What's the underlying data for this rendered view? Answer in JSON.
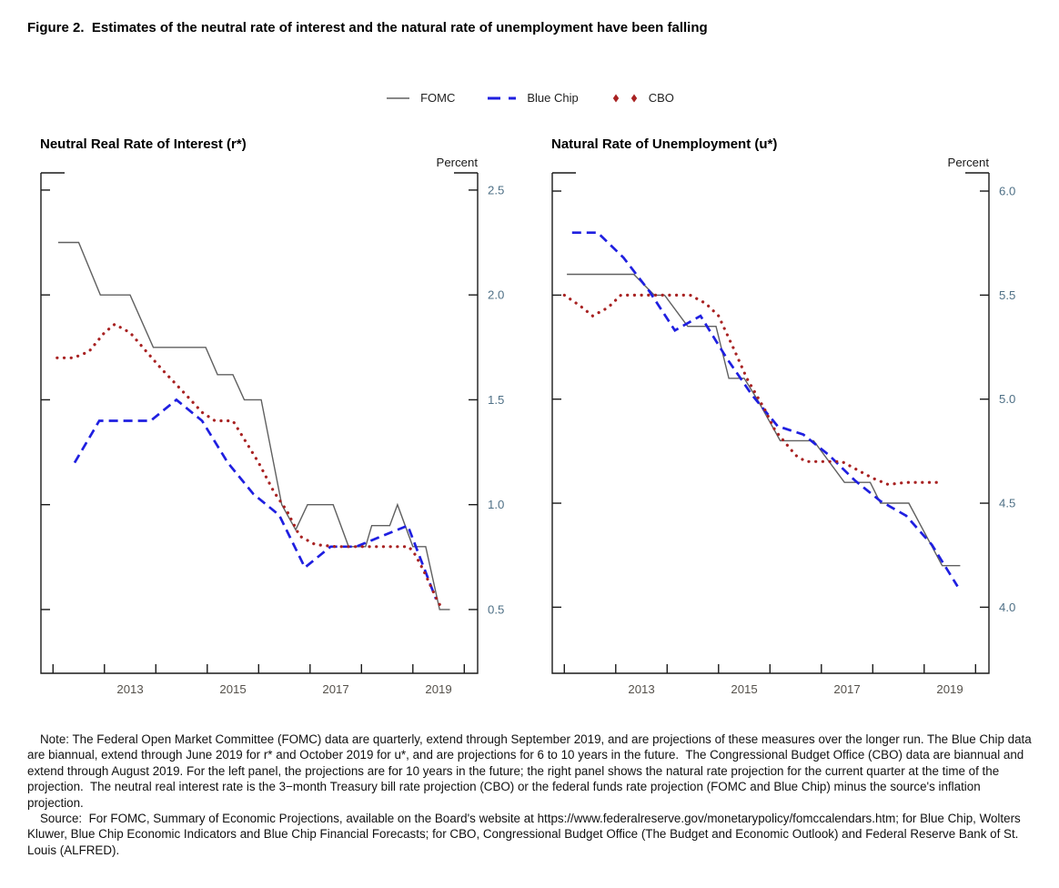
{
  "figure": {
    "title": "Figure 2.  Estimates of the neutral rate of interest and the natural rate of unemployment have been falling"
  },
  "legend": [
    {
      "label": "FOMC",
      "style": "solid",
      "color": "#606060"
    },
    {
      "label": "Blue Chip",
      "style": "dashed",
      "color": "#1f1fe0"
    },
    {
      "label": "CBO",
      "style": "dotted",
      "color": "#a82222"
    }
  ],
  "chart_data": [
    {
      "type": "line",
      "title": "Neutral Real Rate of Interest (r*)",
      "y_axis_label": "Percent",
      "y_tick_labels": [
        "2.5",
        "2.0",
        "1.5",
        "1.0",
        "0.5"
      ],
      "y_ticks": [
        2.5,
        2.0,
        1.5,
        1.0,
        0.5
      ],
      "x_labels": [
        "2013",
        "2015",
        "2017",
        "2019"
      ],
      "x_ticks": [
        2012,
        2013,
        2014,
        2015,
        2016,
        2017,
        2018,
        2019,
        2020
      ],
      "x_range_drawn": [
        2011.765,
        2020.26
      ],
      "y_range_drawn": [
        0.196,
        2.582
      ],
      "grid": false,
      "legend_position": "top-center-shared",
      "series": [
        {
          "name": "FOMC",
          "style": "solid",
          "color": "#606060",
          "points": [
            [
              2012.1,
              2.25
            ],
            [
              2012.5,
              2.25
            ],
            [
              2012.92,
              2.0
            ],
            [
              2013.5,
              2.0
            ],
            [
              2013.95,
              1.75
            ],
            [
              2014.97,
              1.75
            ],
            [
              2015.2,
              1.62
            ],
            [
              2015.5,
              1.62
            ],
            [
              2015.72,
              1.5
            ],
            [
              2016.05,
              1.5
            ],
            [
              2016.45,
              1.0
            ],
            [
              2016.72,
              0.88
            ],
            [
              2016.95,
              1.0
            ],
            [
              2017.45,
              1.0
            ],
            [
              2017.75,
              0.8
            ],
            [
              2018.08,
              0.8
            ],
            [
              2018.2,
              0.9
            ],
            [
              2018.55,
              0.9
            ],
            [
              2018.7,
              1.0
            ],
            [
              2019.0,
              0.8
            ],
            [
              2019.25,
              0.8
            ],
            [
              2019.52,
              0.5
            ],
            [
              2019.72,
              0.5
            ]
          ]
        },
        {
          "name": "Blue Chip",
          "style": "dashed",
          "color": "#1f1fe0",
          "points": [
            [
              2012.42,
              1.2
            ],
            [
              2012.9,
              1.4
            ],
            [
              2013.4,
              1.4
            ],
            [
              2013.9,
              1.4
            ],
            [
              2014.4,
              1.5
            ],
            [
              2014.9,
              1.4
            ],
            [
              2015.4,
              1.2
            ],
            [
              2015.9,
              1.05
            ],
            [
              2016.4,
              0.95
            ],
            [
              2016.9,
              0.7
            ],
            [
              2017.4,
              0.8
            ],
            [
              2017.9,
              0.8
            ],
            [
              2018.4,
              0.85
            ],
            [
              2018.9,
              0.9
            ],
            [
              2019.45,
              0.55
            ]
          ]
        },
        {
          "name": "CBO",
          "style": "dotted",
          "color": "#a82222",
          "points": [
            [
              2012.08,
              1.7
            ],
            [
              2012.4,
              1.7
            ],
            [
              2012.7,
              1.73
            ],
            [
              2013.0,
              1.82
            ],
            [
              2013.2,
              1.86
            ],
            [
              2013.5,
              1.82
            ],
            [
              2013.78,
              1.74
            ],
            [
              2014.1,
              1.65
            ],
            [
              2014.6,
              1.52
            ],
            [
              2014.9,
              1.44
            ],
            [
              2015.15,
              1.4
            ],
            [
              2015.5,
              1.4
            ],
            [
              2015.8,
              1.28
            ],
            [
              2016.0,
              1.2
            ],
            [
              2016.3,
              1.06
            ],
            [
              2016.55,
              0.97
            ],
            [
              2016.8,
              0.85
            ],
            [
              2017.1,
              0.81
            ],
            [
              2017.5,
              0.8
            ],
            [
              2018.5,
              0.8
            ],
            [
              2018.92,
              0.8
            ],
            [
              2019.05,
              0.76
            ],
            [
              2019.2,
              0.69
            ],
            [
              2019.35,
              0.61
            ],
            [
              2019.5,
              0.53
            ],
            [
              2019.6,
              0.5
            ]
          ]
        }
      ]
    },
    {
      "type": "line",
      "title": "Natural Rate of Unemployment (u*)",
      "y_axis_label": "Percent",
      "y_tick_labels": [
        "6.0",
        "5.5",
        "5.0",
        "4.5",
        "4.0"
      ],
      "y_ticks": [
        6.0,
        5.5,
        5.0,
        4.5,
        4.0
      ],
      "x_labels": [
        "2013",
        "2015",
        "2017",
        "2019"
      ],
      "x_ticks": [
        2012,
        2013,
        2014,
        2015,
        2016,
        2017,
        2018,
        2019,
        2020
      ],
      "x_range_drawn": [
        2011.765,
        2020.26
      ],
      "y_range_drawn": [
        3.6825,
        6.0875
      ],
      "grid": false,
      "legend_position": "top-center-shared",
      "series": [
        {
          "name": "FOMC",
          "style": "solid",
          "color": "#606060",
          "points": [
            [
              2012.05,
              5.6
            ],
            [
              2013.35,
              5.6
            ],
            [
              2013.75,
              5.5
            ],
            [
              2013.95,
              5.5
            ],
            [
              2014.4,
              5.35
            ],
            [
              2014.95,
              5.35
            ],
            [
              2015.2,
              5.1
            ],
            [
              2015.5,
              5.1
            ],
            [
              2015.75,
              5.0
            ],
            [
              2016.2,
              4.8
            ],
            [
              2016.85,
              4.8
            ],
            [
              2017.45,
              4.6
            ],
            [
              2017.95,
              4.6
            ],
            [
              2018.15,
              4.5
            ],
            [
              2018.7,
              4.5
            ],
            [
              2019.35,
              4.2
            ],
            [
              2019.7,
              4.2
            ]
          ]
        },
        {
          "name": "Blue Chip",
          "style": "dashed",
          "color": "#1f1fe0",
          "points": [
            [
              2012.15,
              5.8
            ],
            [
              2012.65,
              5.8
            ],
            [
              2013.15,
              5.68
            ],
            [
              2013.65,
              5.52
            ],
            [
              2014.15,
              5.33
            ],
            [
              2014.65,
              5.4
            ],
            [
              2015.15,
              5.2
            ],
            [
              2015.65,
              5.02
            ],
            [
              2016.15,
              4.87
            ],
            [
              2016.65,
              4.83
            ],
            [
              2017.15,
              4.73
            ],
            [
              2017.65,
              4.61
            ],
            [
              2018.15,
              4.51
            ],
            [
              2018.65,
              4.44
            ],
            [
              2019.15,
              4.3
            ],
            [
              2019.65,
              4.1
            ]
          ]
        },
        {
          "name": "CBO",
          "style": "dotted",
          "color": "#a82222",
          "points": [
            [
              2012.0,
              5.5
            ],
            [
              2012.3,
              5.45
            ],
            [
              2012.55,
              5.4
            ],
            [
              2012.85,
              5.44
            ],
            [
              2013.1,
              5.5
            ],
            [
              2014.45,
              5.5
            ],
            [
              2014.75,
              5.46
            ],
            [
              2015.0,
              5.4
            ],
            [
              2015.3,
              5.24
            ],
            [
              2015.55,
              5.1
            ],
            [
              2015.9,
              4.95
            ],
            [
              2016.1,
              4.85
            ],
            [
              2016.3,
              4.79
            ],
            [
              2016.5,
              4.73
            ],
            [
              2016.7,
              4.7
            ],
            [
              2017.4,
              4.7
            ],
            [
              2017.7,
              4.66
            ],
            [
              2018.0,
              4.62
            ],
            [
              2018.3,
              4.59
            ],
            [
              2018.65,
              4.6
            ],
            [
              2019.35,
              4.6
            ]
          ]
        }
      ]
    }
  ],
  "notes": {
    "note": "Note: The Federal Open Market Committee (FOMC) data are quarterly, extend through September 2019, and are projections of these measures over the longer run. The Blue Chip data are biannual, extend through June 2019 for r* and October 2019 for u*, and are projections for 6 to 10 years in the future.  The Congressional Budget Office (CBO) data are biannual and extend through August 2019. For the left panel, the projections are for 10 years in the future; the right panel shows the natural rate projection for the current quarter at the time of the projection.  The neutral real interest rate is the 3−month Treasury bill rate projection (CBO) or the federal funds rate projection (FOMC and Blue Chip) minus the source's inflation projection.",
    "source": "Source:  For FOMC, Summary of Economic Projections, available on the Board's website at https://www.federalreserve.gov/monetarypolicy/fomccalendars.htm; for Blue Chip, Wolters Kluwer, Blue Chip Economic Indicators and Blue Chip Financial Forecasts; for CBO, Congressional Budget Office (The Budget and Economic Outlook) and Federal Reserve Bank of St. Louis (ALFRED)."
  },
  "style": {
    "axis_color": "#1a1a1a",
    "y_tick_label_color": "#4f7086",
    "x_tick_label_color": "#55514b"
  }
}
